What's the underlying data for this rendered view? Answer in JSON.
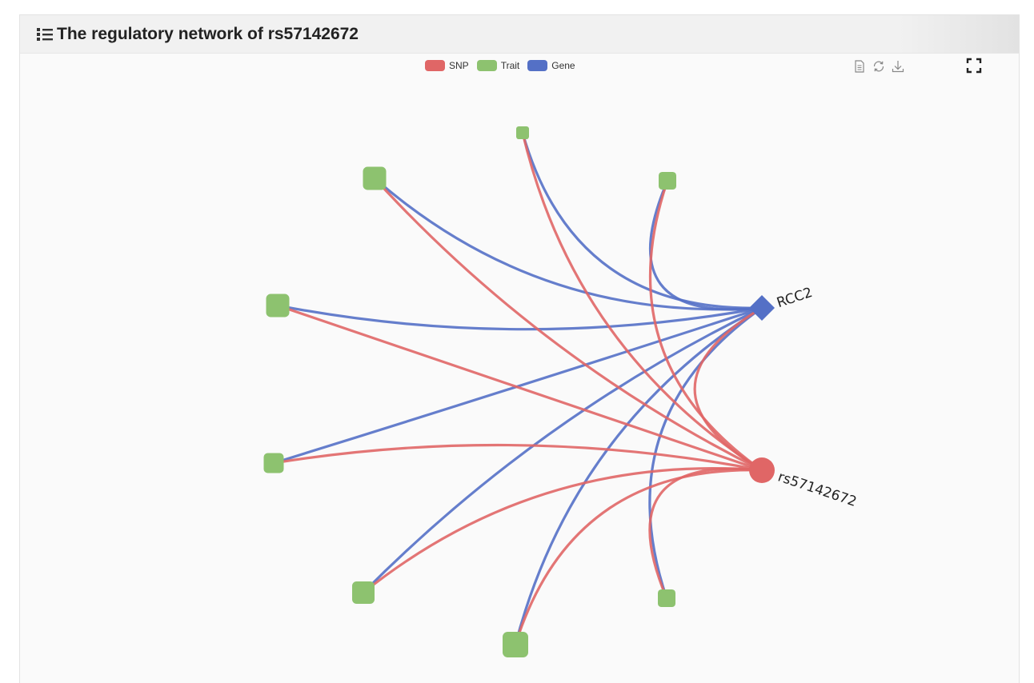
{
  "panel": {
    "title": "The regulatory network of rs57142672",
    "icon": "list-icon"
  },
  "legend": [
    {
      "label": "SNP",
      "color": "#e06666"
    },
    {
      "label": "Trait",
      "color": "#8dc26f"
    },
    {
      "label": "Gene",
      "color": "#5470c6"
    }
  ],
  "toolbox": [
    "data-view-icon",
    "restore-icon",
    "save-image-icon"
  ],
  "fullscreen_icon": "fullscreen-icon",
  "chart_data": {
    "type": "network",
    "layout": "circular",
    "categories": [
      "SNP",
      "Trait",
      "Gene"
    ],
    "nodes": [
      {
        "id": "rs57142672",
        "label": "rs57142672",
        "category": "SNP",
        "shape": "circle"
      },
      {
        "id": "RCC2",
        "label": "RCC2",
        "category": "Gene",
        "shape": "diamond"
      },
      {
        "id": "t1",
        "label": "",
        "category": "Trait",
        "shape": "rounded-square"
      },
      {
        "id": "t2",
        "label": "",
        "category": "Trait",
        "shape": "rounded-square"
      },
      {
        "id": "t3",
        "label": "",
        "category": "Trait",
        "shape": "rounded-square"
      },
      {
        "id": "t4",
        "label": "",
        "category": "Trait",
        "shape": "rounded-square"
      },
      {
        "id": "t5",
        "label": "",
        "category": "Trait",
        "shape": "rounded-square"
      },
      {
        "id": "t6",
        "label": "",
        "category": "Trait",
        "shape": "rounded-square"
      },
      {
        "id": "t7",
        "label": "",
        "category": "Trait",
        "shape": "rounded-square"
      },
      {
        "id": "t8",
        "label": "",
        "category": "Trait",
        "shape": "rounded-square"
      },
      {
        "id": "t9",
        "label": "",
        "category": "Trait",
        "shape": "rounded-square"
      }
    ],
    "links": [
      {
        "source": "rs57142672",
        "target": "RCC2"
      },
      {
        "source": "rs57142672",
        "target": "t1"
      },
      {
        "source": "rs57142672",
        "target": "t2"
      },
      {
        "source": "rs57142672",
        "target": "t3"
      },
      {
        "source": "rs57142672",
        "target": "t4"
      },
      {
        "source": "rs57142672",
        "target": "t5"
      },
      {
        "source": "rs57142672",
        "target": "t6"
      },
      {
        "source": "rs57142672",
        "target": "t7"
      },
      {
        "source": "rs57142672",
        "target": "t8"
      },
      {
        "source": "rs57142672",
        "target": "t9"
      },
      {
        "source": "RCC2",
        "target": "t1"
      },
      {
        "source": "RCC2",
        "target": "t2"
      },
      {
        "source": "RCC2",
        "target": "t3"
      },
      {
        "source": "RCC2",
        "target": "t4"
      },
      {
        "source": "RCC2",
        "target": "t5"
      },
      {
        "source": "RCC2",
        "target": "t6"
      },
      {
        "source": "RCC2",
        "target": "t7"
      },
      {
        "source": "RCC2",
        "target": "t8"
      },
      {
        "source": "RCC2",
        "target": "t9"
      }
    ]
  }
}
